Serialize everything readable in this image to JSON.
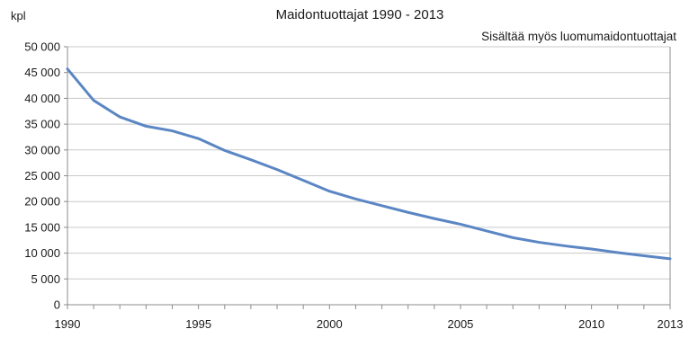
{
  "chart_data": {
    "type": "line",
    "title": "Maidontuottajat 1990 - 2013",
    "subtitle": "Sisältää myös luomumaidontuottajat",
    "ylabel": "kpl",
    "xlabel": "",
    "xlim": [
      1990,
      2013
    ],
    "ylim": [
      0,
      50000
    ],
    "grid": true,
    "x_ticks": [
      1990,
      1995,
      2000,
      2005,
      2010,
      2013
    ],
    "x_tick_labels": [
      "1990",
      "1995",
      "2000",
      "2005",
      "2010",
      "2013"
    ],
    "y_ticks": [
      0,
      5000,
      10000,
      15000,
      20000,
      25000,
      30000,
      35000,
      40000,
      45000,
      50000
    ],
    "y_tick_labels": [
      "0",
      "5 000",
      "10 000",
      "15 000",
      "20 000",
      "25 000",
      "30 000",
      "35 000",
      "40 000",
      "45 000",
      "50 000"
    ],
    "line_color": "#5b86c4",
    "series": [
      {
        "x": [
          1990,
          1991,
          1992,
          1993,
          1994,
          1995,
          1996,
          1997,
          1998,
          1999,
          2000,
          2001,
          2002,
          2003,
          2004,
          2005,
          2006,
          2007,
          2008,
          2009,
          2010,
          2011,
          2012,
          2013
        ],
        "values": [
          45700,
          39600,
          36400,
          34600,
          33700,
          32200,
          29900,
          28100,
          26200,
          24100,
          22000,
          20500,
          19200,
          17900,
          16700,
          15600,
          14300,
          13000,
          12100,
          11400,
          10800,
          10100,
          9500,
          8900
        ]
      }
    ]
  }
}
